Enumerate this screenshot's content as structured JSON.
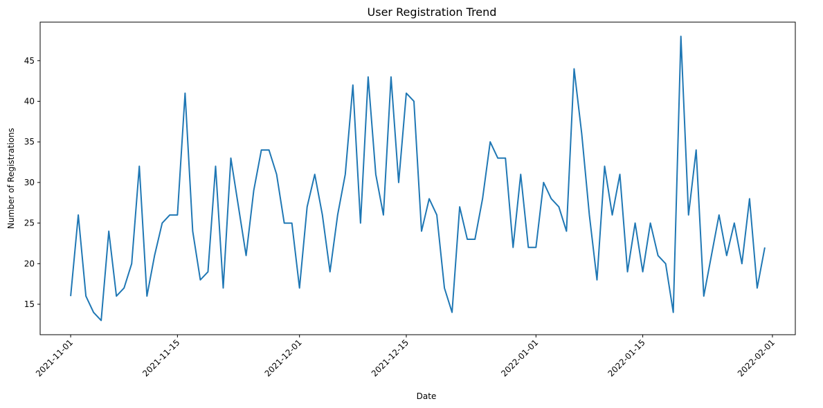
{
  "chart_data": {
    "type": "line",
    "title": "User Registration Trend",
    "xlabel": "Date",
    "ylabel": "Number of Registrations",
    "grid": false,
    "legend": "none",
    "x_range": [
      "2021-10-28",
      "2022-02-04"
    ],
    "ylim": [
      11.25,
      49.75
    ],
    "x_ticks": [
      "2021-11-01",
      "2021-11-15",
      "2021-12-01",
      "2021-12-15",
      "2022-01-01",
      "2022-01-15",
      "2022-02-01"
    ],
    "y_ticks": [
      15,
      20,
      25,
      30,
      35,
      40,
      45
    ],
    "series": [
      {
        "color": "#1f77b4",
        "start_date": "2021-11-01",
        "values": [
          16,
          26,
          16,
          14,
          13,
          24,
          16,
          17,
          20,
          32,
          16,
          21,
          25,
          26,
          26,
          41,
          24,
          18,
          19,
          32,
          17,
          33,
          27,
          21,
          29,
          34,
          34,
          31,
          25,
          25,
          17,
          27,
          31,
          26,
          19,
          26,
          31,
          42,
          25,
          43,
          31,
          26,
          43,
          30,
          41,
          40,
          24,
          28,
          26,
          17,
          14,
          27,
          23,
          23,
          28,
          35,
          33,
          33,
          22,
          31,
          22,
          22,
          30,
          28,
          27,
          24,
          44,
          36,
          26,
          18,
          32,
          26,
          31,
          19,
          25,
          19,
          25,
          21,
          20,
          14,
          48,
          26,
          34,
          16,
          21,
          26,
          21,
          25,
          20,
          28,
          17,
          22
        ]
      }
    ]
  }
}
